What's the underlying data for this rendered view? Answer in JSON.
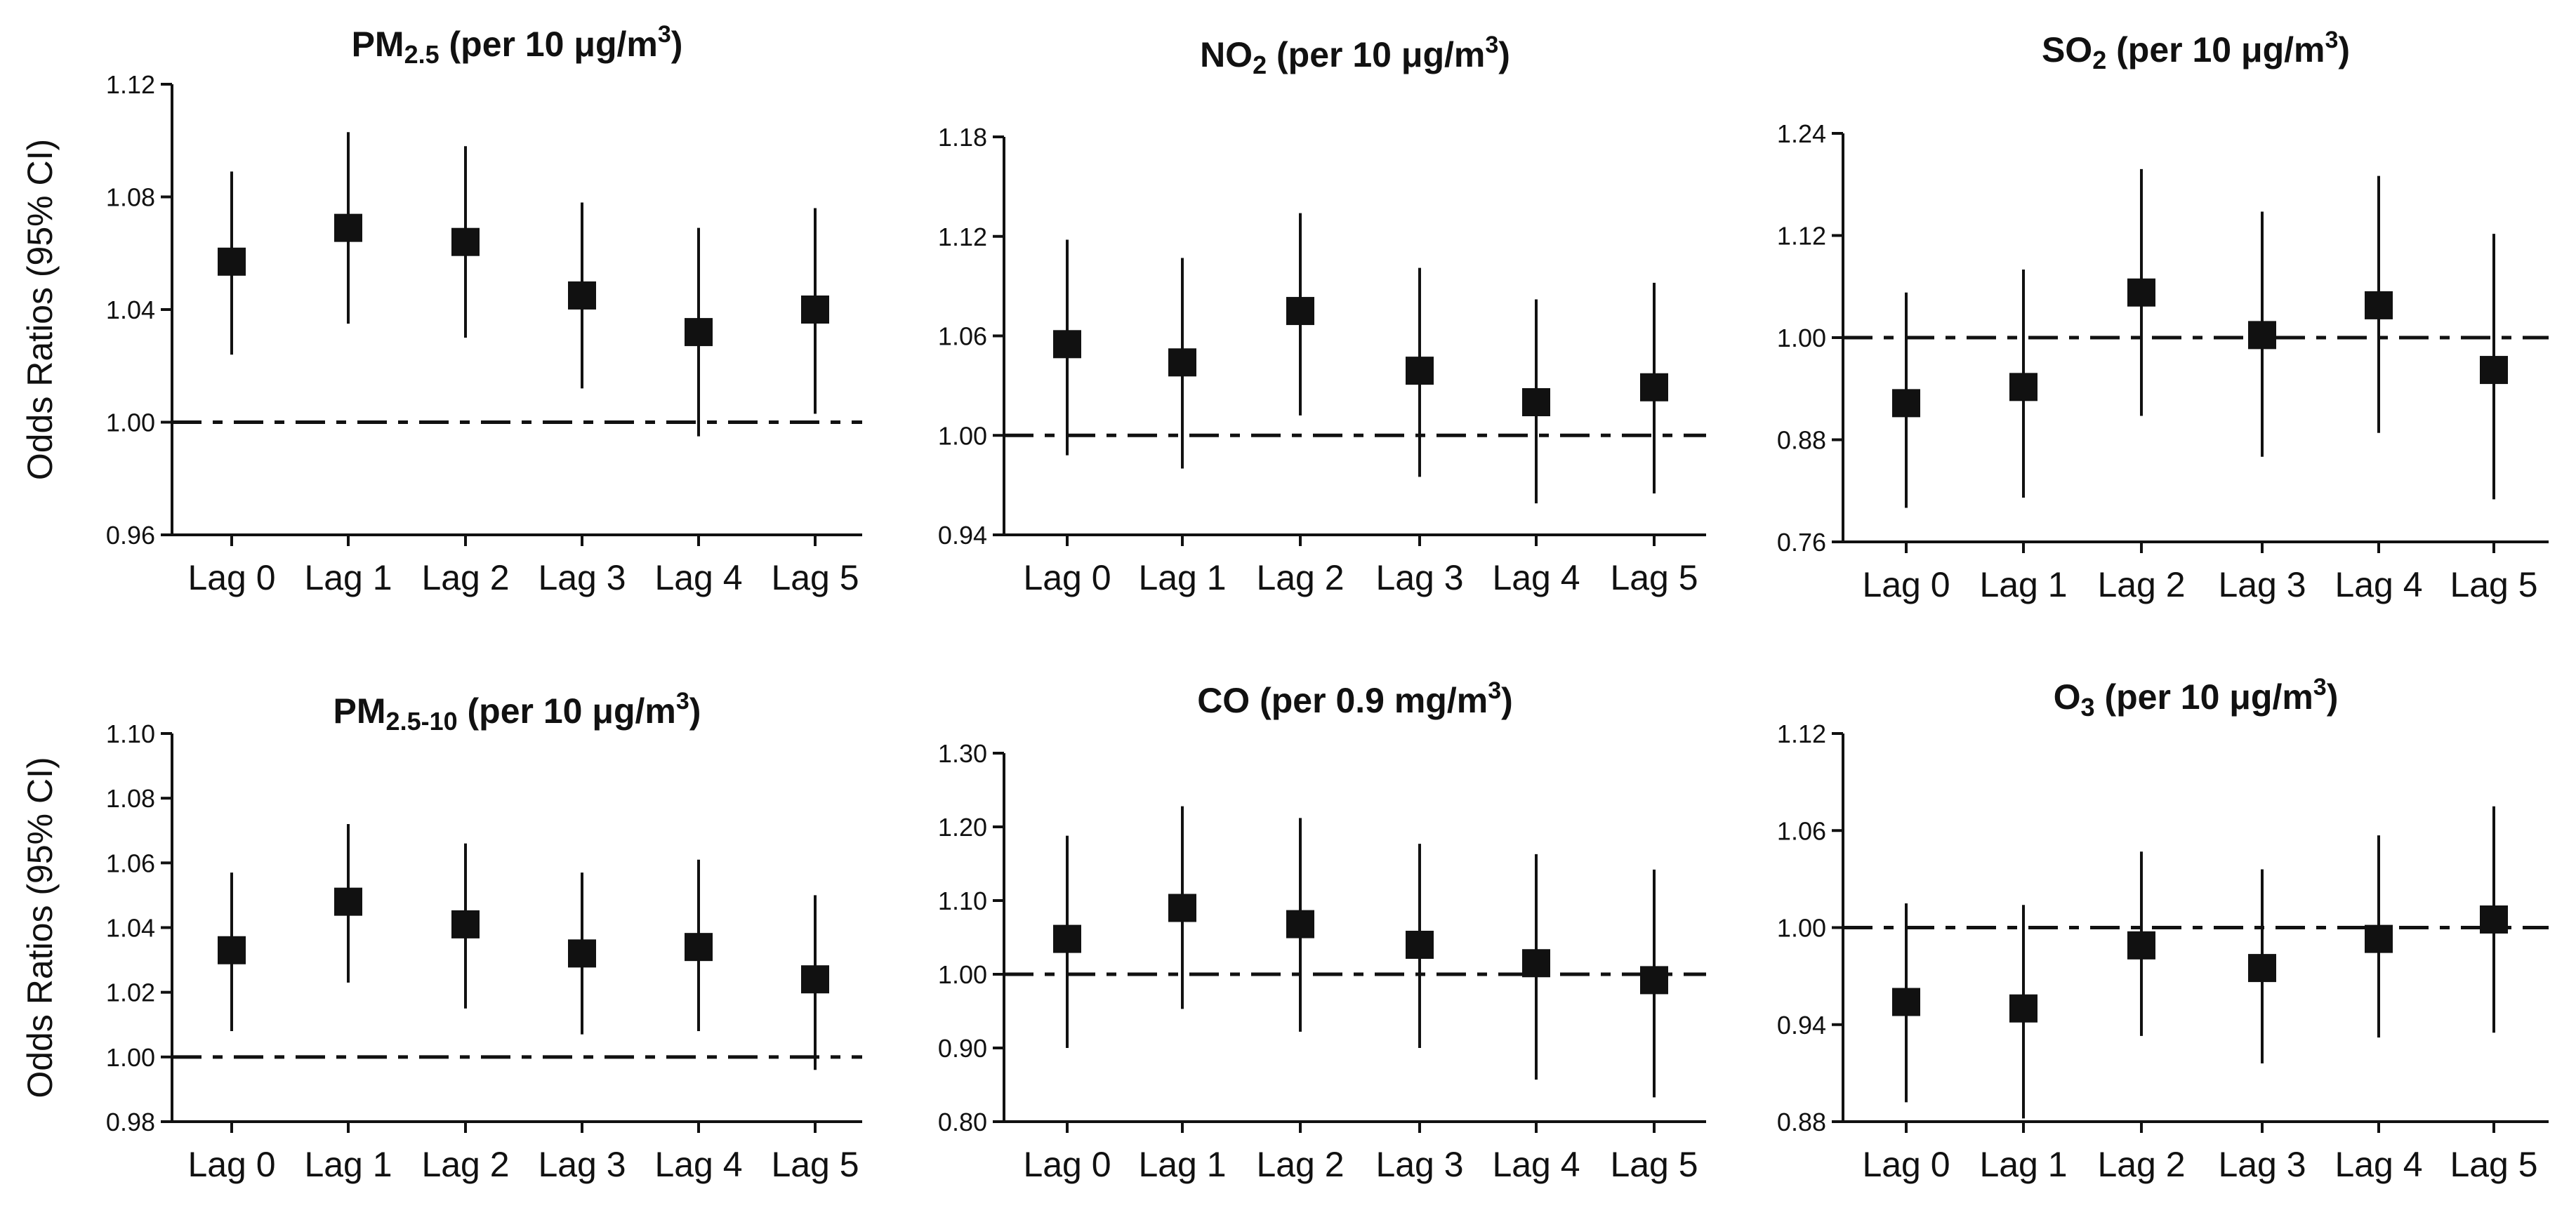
{
  "y_axis_title": "Odds Ratios (95% CI)",
  "chart_data": [
    {
      "type": "scatter",
      "title": "PM",
      "title_sub": "2.5",
      "title_rest": " (per 10 μg/m",
      "title_sup": "3",
      "title_close": ")",
      "ylabel": "Odds Ratios (95% CI)",
      "ylim": [
        0.96,
        1.12
      ],
      "yticks": [
        "0.96",
        "1.00",
        "1.04",
        "1.08",
        "1.12"
      ],
      "reference_line": 1.0,
      "categories": [
        "Lag 0",
        "Lag 1",
        "Lag 2",
        "Lag 3",
        "Lag 4",
        "Lag 5"
      ],
      "values": [
        1.057,
        1.069,
        1.064,
        1.045,
        1.032,
        1.04
      ],
      "ci_low": [
        1.024,
        1.035,
        1.03,
        1.012,
        0.995,
        1.003
      ],
      "ci_high": [
        1.089,
        1.103,
        1.098,
        1.078,
        1.069,
        1.076
      ]
    },
    {
      "type": "scatter",
      "title": "NO",
      "title_sub": "2",
      "title_rest": " (per 10 μg/m",
      "title_sup": "3",
      "title_close": ")",
      "ylabel": "",
      "ylim": [
        0.94,
        1.18
      ],
      "yticks": [
        "0.94",
        "1.00",
        "1.06",
        "1.12",
        "1.18"
      ],
      "reference_line": 1.0,
      "categories": [
        "Lag 0",
        "Lag 1",
        "Lag 2",
        "Lag 3",
        "Lag 4",
        "Lag 5"
      ],
      "values": [
        1.055,
        1.044,
        1.075,
        1.039,
        1.02,
        1.029
      ],
      "ci_low": [
        0.988,
        0.98,
        1.012,
        0.975,
        0.959,
        0.965
      ],
      "ci_high": [
        1.118,
        1.107,
        1.134,
        1.101,
        1.082,
        1.092
      ]
    },
    {
      "type": "scatter",
      "title": "SO",
      "title_sub": "2",
      "title_rest": " (per 10 μg/m",
      "title_sup": "3",
      "title_close": ")",
      "ylabel": "",
      "ylim": [
        0.76,
        1.24
      ],
      "yticks": [
        "0.76",
        "0.88",
        "1.00",
        "1.12",
        "1.24"
      ],
      "reference_line": 1.0,
      "categories": [
        "Lag 0",
        "Lag 1",
        "Lag 2",
        "Lag 3",
        "Lag 4",
        "Lag 5"
      ],
      "values": [
        0.923,
        0.942,
        1.053,
        1.003,
        1.038,
        0.962
      ],
      "ci_low": [
        0.8,
        0.812,
        0.908,
        0.86,
        0.888,
        0.81
      ],
      "ci_high": [
        1.053,
        1.08,
        1.198,
        1.148,
        1.19,
        1.122
      ]
    },
    {
      "type": "scatter",
      "title": "PM",
      "title_sub": "2.5-10",
      "title_rest": " (per 10 μg/m",
      "title_sup": "3",
      "title_close": ")",
      "ylabel": "Odds Ratios (95% CI)",
      "ylim": [
        0.98,
        1.1
      ],
      "yticks": [
        "0.98",
        "1.00",
        "1.02",
        "1.04",
        "1.06",
        "1.08",
        "1.10"
      ],
      "reference_line": 1.0,
      "categories": [
        "Lag 0",
        "Lag 1",
        "Lag 2",
        "Lag 3",
        "Lag 4",
        "Lag 5"
      ],
      "values": [
        1.033,
        1.048,
        1.041,
        1.032,
        1.034,
        1.024
      ],
      "ci_low": [
        1.008,
        1.023,
        1.015,
        1.007,
        1.008,
        0.996
      ],
      "ci_high": [
        1.057,
        1.072,
        1.066,
        1.057,
        1.061,
        1.05
      ]
    },
    {
      "type": "scatter",
      "title": "CO",
      "title_sub": "",
      "title_rest": " (per 0.9 mg/m",
      "title_sup": "3",
      "title_close": ")",
      "ylabel": "",
      "ylim": [
        0.8,
        1.3
      ],
      "yticks": [
        "0.80",
        "0.90",
        "1.00",
        "1.10",
        "1.20",
        "1.30"
      ],
      "reference_line": 1.0,
      "categories": [
        "Lag 0",
        "Lag 1",
        "Lag 2",
        "Lag 3",
        "Lag 4",
        "Lag 5"
      ],
      "values": [
        1.048,
        1.09,
        1.068,
        1.04,
        1.015,
        0.992
      ],
      "ci_low": [
        0.9,
        0.953,
        0.922,
        0.9,
        0.857,
        0.833
      ],
      "ci_high": [
        1.188,
        1.228,
        1.212,
        1.177,
        1.163,
        1.142
      ]
    },
    {
      "type": "scatter",
      "title": "O",
      "title_sub": "3",
      "title_rest": " (per 10 μg/m",
      "title_sup": "3",
      "title_close": ")",
      "ylabel": "",
      "ylim": [
        0.88,
        1.12
      ],
      "yticks": [
        "0.88",
        "0.94",
        "1.00",
        "1.06",
        "1.12"
      ],
      "reference_line": 1.0,
      "categories": [
        "Lag 0",
        "Lag 1",
        "Lag 2",
        "Lag 3",
        "Lag 4",
        "Lag 5"
      ],
      "values": [
        0.954,
        0.95,
        0.989,
        0.975,
        0.993,
        1.005
      ],
      "ci_low": [
        0.892,
        0.882,
        0.933,
        0.916,
        0.932,
        0.935
      ],
      "ci_high": [
        1.015,
        1.014,
        1.047,
        1.036,
        1.057,
        1.075
      ]
    }
  ]
}
